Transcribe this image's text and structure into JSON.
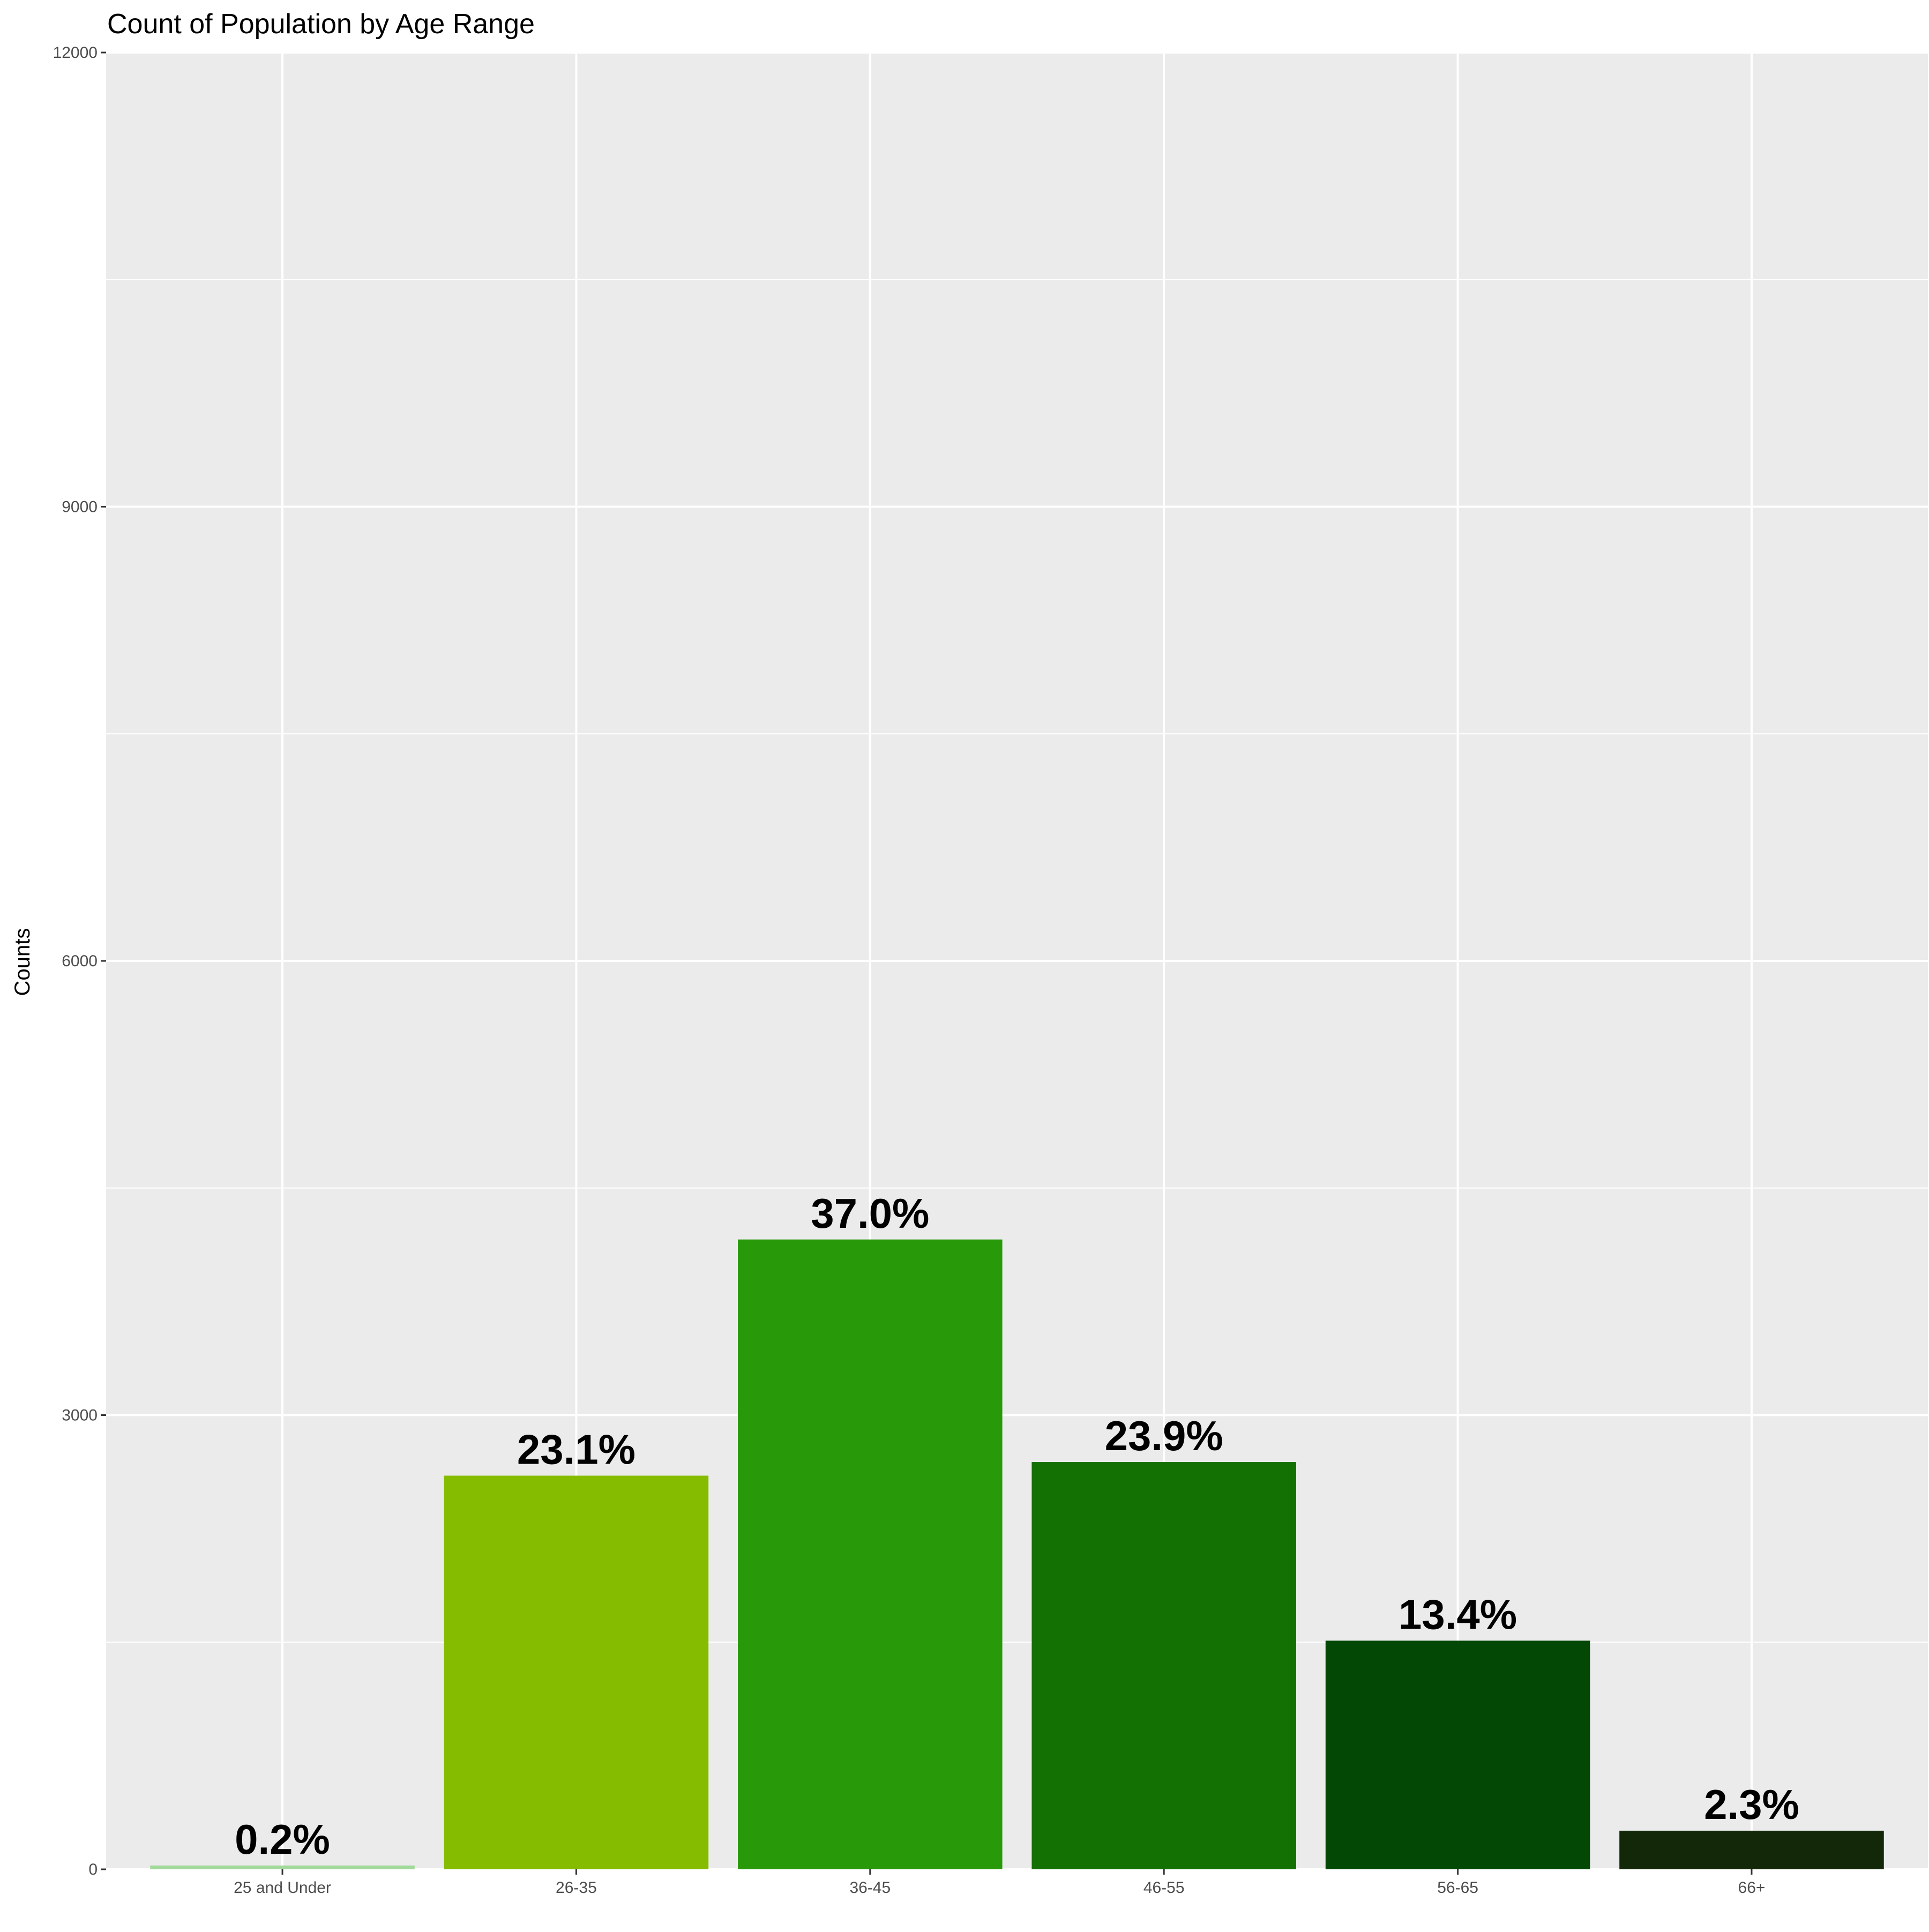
{
  "chart_data": {
    "type": "bar",
    "title": "Count of Population by Age Range",
    "xlabel": "",
    "ylabel": "Counts",
    "categories": [
      "25 and Under",
      "26-35",
      "36-45",
      "46-55",
      "56-65",
      "66+"
    ],
    "values": [
      25,
      2600,
      4160,
      2690,
      1510,
      255
    ],
    "labels": [
      "0.2%",
      "23.1%",
      "37.0%",
      "23.9%",
      "13.4%",
      "2.3%"
    ],
    "colors": [
      "#a1d99b",
      "#86bc00",
      "#289908",
      "#137002",
      "#034805",
      "#122809"
    ],
    "ylim": [
      0,
      12000
    ],
    "yticks": [
      0,
      3000,
      6000,
      9000,
      12000
    ],
    "grid": true,
    "legend": "none",
    "background": "#ebebeb",
    "gridline_color": "#ffffff"
  }
}
